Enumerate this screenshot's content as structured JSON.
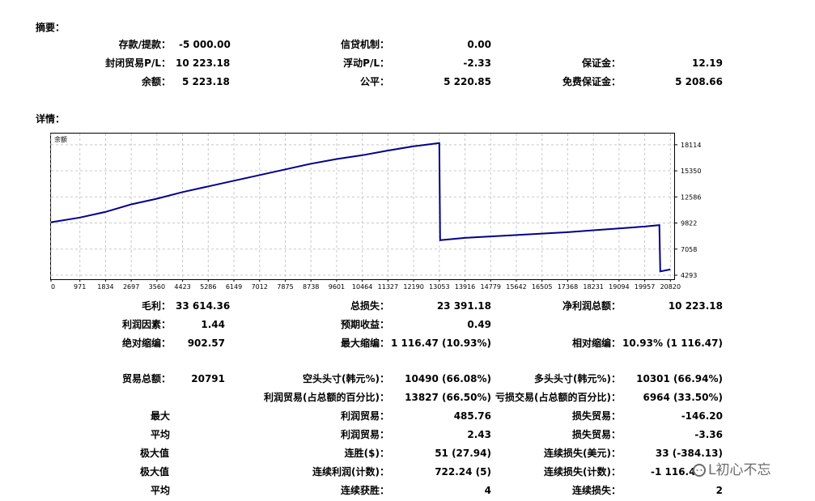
{
  "summary": {
    "title": "摘要：",
    "deposit_label": "存款/提款：",
    "deposit_value": "-5 000.00",
    "closed_pl_label": "封闭贸易P/L：",
    "closed_pl_value": "10 223.18",
    "balance_label": "余额：",
    "balance_value": "5 223.18",
    "credit_label": "信贷机制：",
    "credit_value": "0.00",
    "floating_label": "浮动P/L：",
    "floating_value": "-2.33",
    "equity_label": "公平：",
    "equity_value": "5 220.85",
    "margin_label": "保证金：",
    "margin_value": "12.19",
    "free_margin_label": "免费保证金：",
    "free_margin_value": "5 208.66"
  },
  "details": {
    "title": "详情：",
    "gross_profit_label": "毛利：",
    "gross_profit_value": "33 614.36",
    "gross_loss_label": "总损失：",
    "gross_loss_value": "23 391.18",
    "net_profit_label": "净利润总额：",
    "net_profit_value": "10 223.18",
    "profit_factor_label": "利润因素：",
    "profit_factor_value": "1.44",
    "expected_payoff_label": "预期收益：",
    "expected_payoff_value": "0.49",
    "abs_dd_label": "绝对缩编：",
    "abs_dd_value": "902.57",
    "max_dd_label": "最大缩编：",
    "max_dd_value": "1 116.47 (10.93%)",
    "rel_dd_label": "相对缩编：",
    "rel_dd_value": "10.93% (1 116.47)",
    "total_trades_label": "贸易总额：",
    "total_trades_value": "20791",
    "short_label": "空头头寸(韩元%)：",
    "short_value": "10490 (66.08%)",
    "long_label": "多头头寸(韩元%)：",
    "long_value": "10301 (66.94%)",
    "profit_trades_label": "利润贸易(占总额的百分比)：",
    "profit_trades_value": "13827 (66.50%)",
    "loss_trades_label": "亏损交易(占总额的百分比)：",
    "loss_trades_value": "6964 (33.50%)",
    "largest_label": "最大",
    "largest_profit_label": "利润贸易：",
    "largest_profit_value": "485.76",
    "largest_loss_label": "损失贸易：",
    "largest_loss_value": "-146.20",
    "average_label": "平均",
    "avg_profit_label": "利润贸易：",
    "avg_profit_value": "2.43",
    "avg_loss_label": "损失贸易：",
    "avg_loss_value": "-3.36",
    "maximum_label": "极大值",
    "max_wins_label": "连胜($)：",
    "max_wins_value": "51 (27.94)",
    "max_losses_label": "连续损失(美元)：",
    "max_losses_value": "33 (-384.13)",
    "maximal_label": "极大值",
    "max_profit_label": "连续利润(计数)：",
    "max_profit_value": "722.24 (5)",
    "max_loss_count_label": "连续损失(计数)：",
    "max_loss_count_value": "-1 116.4",
    "average2_label": "平均",
    "avg_wins_label": "连续获胜：",
    "avg_wins_value": "4",
    "avg_losses_label": "连续损失：",
    "avg_losses_value": "2"
  },
  "watermark": "L初心不忘",
  "chart_data": {
    "type": "line",
    "title": "余额",
    "x": [
      0,
      971,
      1834,
      2697,
      3560,
      4423,
      5286,
      6149,
      7012,
      7875,
      8738,
      9601,
      10464,
      11327,
      12190,
      13053,
      13080,
      13916,
      14779,
      15642,
      16505,
      17368,
      18231,
      19094,
      19957,
      20450,
      20480,
      20820
    ],
    "y": [
      9900,
      10400,
      11000,
      11800,
      12400,
      13100,
      13700,
      14300,
      14900,
      15500,
      16100,
      16600,
      17000,
      17500,
      17950,
      18300,
      8000,
      8250,
      8400,
      8550,
      8700,
      8850,
      9050,
      9250,
      9450,
      9600,
      4700,
      4900
    ],
    "xticks": [
      0,
      971,
      1834,
      2697,
      3560,
      4423,
      5286,
      6149,
      7012,
      7875,
      8738,
      9601,
      10464,
      11327,
      12190,
      13053,
      13916,
      14779,
      15642,
      16505,
      17368,
      18231,
      19094,
      19957,
      20820
    ],
    "yticks": [
      4293,
      7058,
      9822,
      12586,
      15350,
      18114
    ],
    "xlim": [
      0,
      20920
    ],
    "ylim": [
      3950,
      19300
    ],
    "grid": true,
    "color": "#00008b"
  }
}
